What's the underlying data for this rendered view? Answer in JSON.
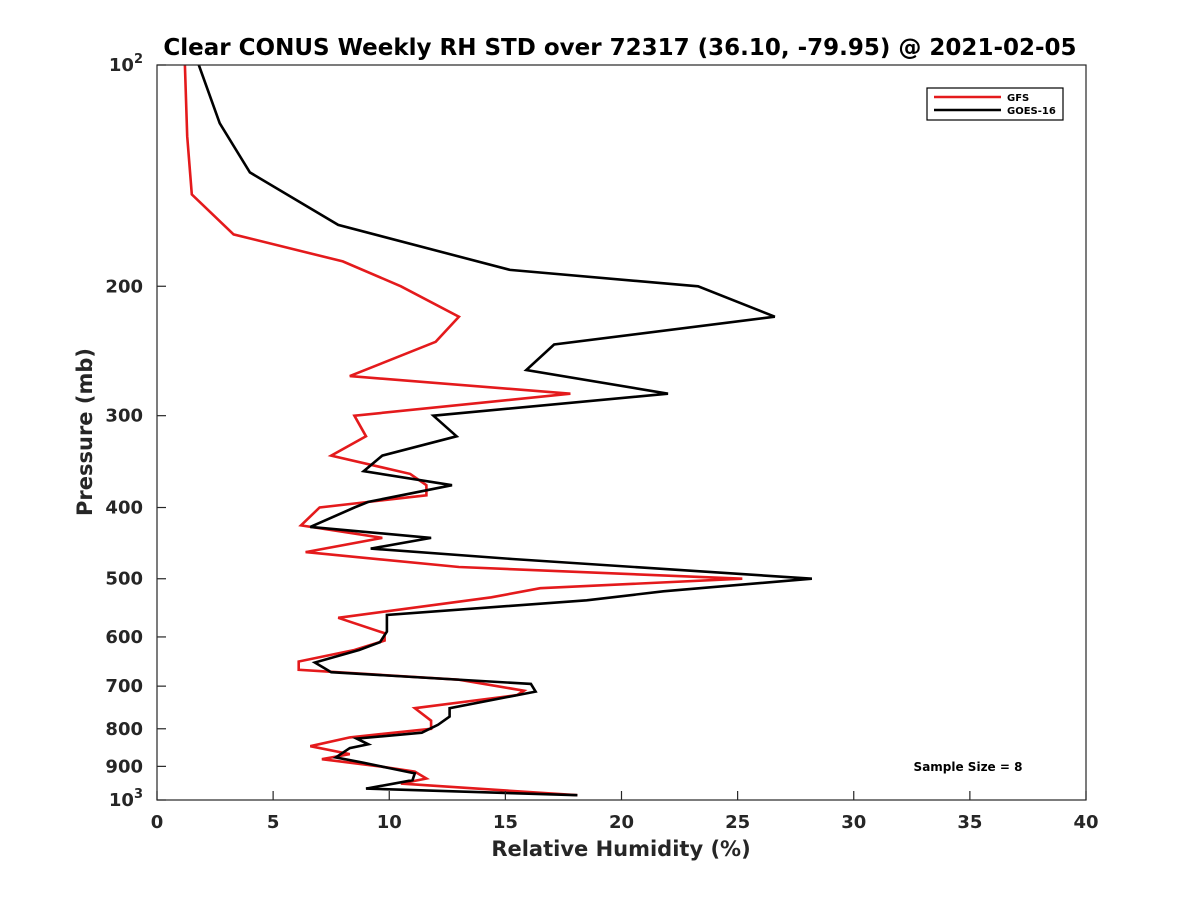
{
  "chart_data": {
    "type": "line",
    "title": "Clear CONUS Weekly RH STD over 72317 (36.10, -79.95) @ 2021-02-05",
    "xlabel": "Relative Humidity (%)",
    "ylabel": "Pressure (mb)",
    "xlim": [
      0,
      40
    ],
    "ylim": [
      100,
      1000
    ],
    "y_scale": "log",
    "y_reversed": true,
    "grid": false,
    "legend_position": "top-right",
    "x_ticks": [
      0,
      5,
      10,
      15,
      20,
      25,
      30,
      35,
      40
    ],
    "y_ticks": [
      {
        "value": 100,
        "label": "10",
        "exp": "2"
      },
      {
        "value": 200,
        "label": "200"
      },
      {
        "value": 300,
        "label": "300"
      },
      {
        "value": 400,
        "label": "400"
      },
      {
        "value": 500,
        "label": "500"
      },
      {
        "value": 600,
        "label": "600"
      },
      {
        "value": 700,
        "label": "700"
      },
      {
        "value": 800,
        "label": "800"
      },
      {
        "value": 900,
        "label": "900"
      },
      {
        "value": 1000,
        "label": "10",
        "exp": "3"
      }
    ],
    "annotation": "Sample Size = 8",
    "series": [
      {
        "name": "GFS",
        "color": "#e41a1c",
        "points": [
          [
            1.2,
            100
          ],
          [
            1.3,
            125
          ],
          [
            1.5,
            150
          ],
          [
            3.3,
            170
          ],
          [
            8.0,
            185
          ],
          [
            10.5,
            200
          ],
          [
            13.0,
            220
          ],
          [
            12.0,
            238
          ],
          [
            8.3,
            265
          ],
          [
            17.8,
            280
          ],
          [
            8.5,
            300
          ],
          [
            9.0,
            320
          ],
          [
            7.5,
            340
          ],
          [
            10.9,
            360
          ],
          [
            11.6,
            373
          ],
          [
            11.6,
            385
          ],
          [
            7.0,
            400
          ],
          [
            6.2,
            423
          ],
          [
            9.7,
            440
          ],
          [
            6.4,
            460
          ],
          [
            13.0,
            482
          ],
          [
            25.2,
            500
          ],
          [
            16.5,
            515
          ],
          [
            14.4,
            530
          ],
          [
            7.8,
            565
          ],
          [
            9.8,
            593
          ],
          [
            9.8,
            607
          ],
          [
            8.5,
            625
          ],
          [
            6.1,
            648
          ],
          [
            6.1,
            665
          ],
          [
            13.0,
            686
          ],
          [
            15.8,
            710
          ],
          [
            15.5,
            720
          ],
          [
            11.1,
            750
          ],
          [
            11.8,
            780
          ],
          [
            11.8,
            800
          ],
          [
            8.3,
            822
          ],
          [
            6.6,
            845
          ],
          [
            8.3,
            866
          ],
          [
            7.1,
            880
          ],
          [
            9.6,
            900
          ],
          [
            11.1,
            915
          ],
          [
            11.6,
            935
          ],
          [
            10.5,
            950
          ],
          [
            18.1,
            985
          ]
        ]
      },
      {
        "name": "GOES-16",
        "color": "#000000",
        "points": [
          [
            1.8,
            100
          ],
          [
            2.7,
            120
          ],
          [
            4.0,
            140
          ],
          [
            7.8,
            165
          ],
          [
            15.2,
            190
          ],
          [
            23.3,
            200
          ],
          [
            26.6,
            220
          ],
          [
            17.1,
            240
          ],
          [
            15.9,
            260
          ],
          [
            22.0,
            280
          ],
          [
            11.9,
            300
          ],
          [
            12.9,
            320
          ],
          [
            9.7,
            340
          ],
          [
            8.9,
            357
          ],
          [
            12.7,
            373
          ],
          [
            9.1,
            393
          ],
          [
            8.5,
            400
          ],
          [
            6.6,
            425
          ],
          [
            11.8,
            440
          ],
          [
            9.2,
            455
          ],
          [
            15.3,
            470
          ],
          [
            28.2,
            500
          ],
          [
            21.8,
            520
          ],
          [
            18.5,
            535
          ],
          [
            9.9,
            560
          ],
          [
            9.9,
            590
          ],
          [
            9.6,
            610
          ],
          [
            8.7,
            625
          ],
          [
            6.8,
            650
          ],
          [
            7.5,
            670
          ],
          [
            16.1,
            695
          ],
          [
            16.3,
            712
          ],
          [
            12.6,
            750
          ],
          [
            12.6,
            770
          ],
          [
            12.1,
            790
          ],
          [
            11.4,
            810
          ],
          [
            8.6,
            825
          ],
          [
            9.1,
            840
          ],
          [
            8.3,
            850
          ],
          [
            7.7,
            875
          ],
          [
            8.9,
            890
          ],
          [
            10.0,
            905
          ],
          [
            11.1,
            920
          ],
          [
            11.0,
            940
          ],
          [
            9.0,
            965
          ],
          [
            18.1,
            985
          ]
        ]
      }
    ]
  }
}
